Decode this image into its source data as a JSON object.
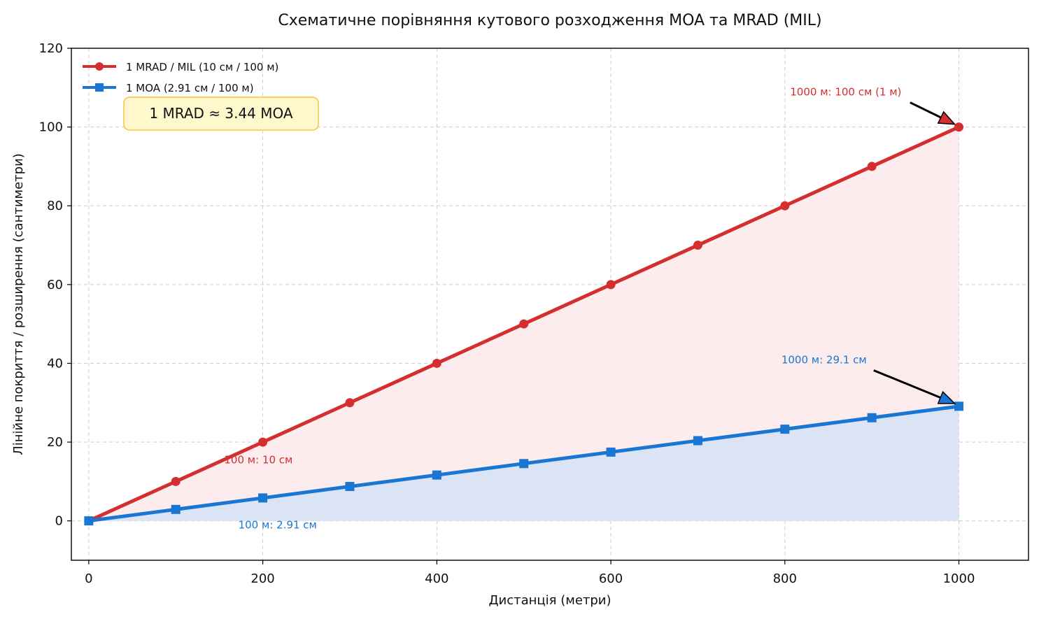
{
  "chart_data": {
    "type": "line",
    "title": "Схематичне порівняння кутового розходження MOA та MRAD (MIL)",
    "xlabel": "Дистанція (метри)",
    "ylabel": "Лінійне покриття / розширення (сантиметри)",
    "xlim": [
      -20,
      1080
    ],
    "ylim": [
      -10,
      120
    ],
    "xticks": [
      0,
      200,
      400,
      600,
      800,
      1000
    ],
    "yticks": [
      0,
      20,
      40,
      60,
      80,
      100,
      120
    ],
    "grid": true,
    "legend_position": "top-left",
    "x": [
      0,
      100,
      200,
      300,
      400,
      500,
      600,
      700,
      800,
      900,
      1000
    ],
    "series": [
      {
        "name": "1 MRAD / MIL (10 см / 100 м)",
        "values": [
          0,
          10,
          20,
          30,
          40,
          50,
          60,
          70,
          80,
          90,
          100
        ],
        "color": "#d32f2f",
        "fill": "#fdecee",
        "marker": "circle"
      },
      {
        "name": "1 MOA (2.91 см / 100 м)",
        "values": [
          0,
          2.91,
          5.82,
          8.73,
          11.64,
          14.55,
          17.46,
          20.37,
          23.28,
          26.19,
          29.1
        ],
        "color": "#1976d2",
        "fill": "#dbe4f5",
        "marker": "square"
      }
    ],
    "annotations": [
      {
        "text": "1000 м: 100 см (1 м)",
        "x": 1000,
        "y": 100,
        "text_x": 870,
        "text_y": 108,
        "color": "#d32f2f",
        "arrow": true
      },
      {
        "text": "1000 м: 29.1 см",
        "x": 1000,
        "y": 29.1,
        "text_x": 845,
        "text_y": 40,
        "color": "#1976d2",
        "arrow": true
      },
      {
        "text": "100 м: 10 см",
        "x": 195,
        "y": 15.5,
        "color": "#d32f2f",
        "arrow": false
      },
      {
        "text": "100 м: 2.91 см",
        "x": 217,
        "y": -1,
        "color": "#1976d2",
        "arrow": false
      }
    ],
    "info_box": "1 MRAD ≈ 3.44 MOA"
  }
}
